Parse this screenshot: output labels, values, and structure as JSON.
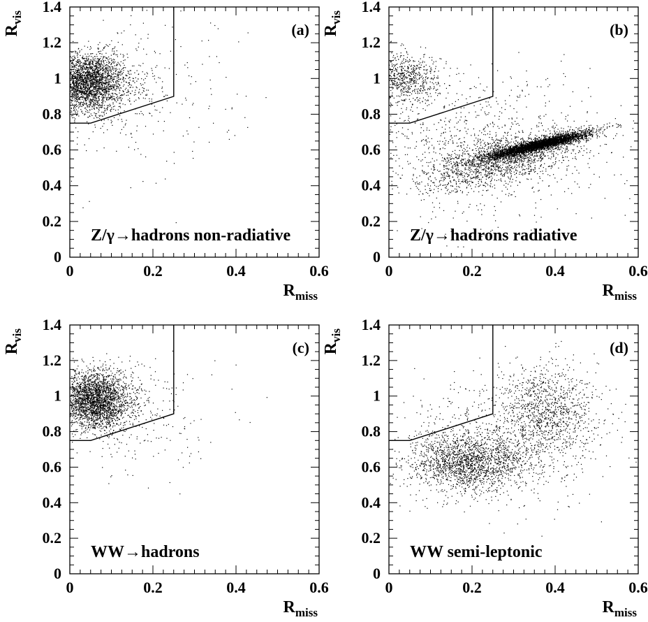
{
  "chart_data": [
    {
      "type": "scatter",
      "panel_label": "(a)",
      "annotation": "Z/γ→hadrons non-radiative",
      "xlabel_main": "R",
      "xlabel_sub": "miss",
      "ylabel_main": "R",
      "ylabel_sub": "vis",
      "xlim": [
        0,
        0.6
      ],
      "ylim": [
        0,
        1.4
      ],
      "xticks": [
        "0",
        "0.2",
        "0.4",
        "0.6"
      ],
      "yticks": [
        "0",
        "0.2",
        "0.4",
        "0.6",
        "0.8",
        "1",
        "1.2",
        "1.4"
      ],
      "selection_cut": [
        [
          0,
          0.75
        ],
        [
          0.05,
          0.75
        ],
        [
          0.25,
          0.9
        ],
        [
          0.25,
          1.4
        ]
      ],
      "clusters": [
        {
          "cx": 0.04,
          "cy": 0.98,
          "sx": 0.045,
          "sy": 0.08,
          "n": 2600
        },
        {
          "cx": 0.1,
          "cy": 0.95,
          "sx": 0.08,
          "sy": 0.12,
          "n": 350
        },
        {
          "cx": 0.2,
          "cy": 0.85,
          "sx": 0.15,
          "sy": 0.25,
          "n": 140
        }
      ]
    },
    {
      "type": "scatter",
      "panel_label": "(b)",
      "annotation": "Z/γ→hadrons radiative",
      "xlabel_main": "R",
      "xlabel_sub": "miss",
      "ylabel_main": "R",
      "ylabel_sub": "vis",
      "xlim": [
        0,
        0.6
      ],
      "ylim": [
        0,
        1.4
      ],
      "xticks": [
        "0",
        "0.2",
        "0.4",
        "0.6"
      ],
      "yticks": [
        "0",
        "0.2",
        "0.4",
        "0.6",
        "0.8",
        "1",
        "1.2",
        "1.4"
      ],
      "selection_cut": [
        [
          0,
          0.75
        ],
        [
          0.05,
          0.75
        ],
        [
          0.25,
          0.9
        ],
        [
          0.25,
          1.4
        ]
      ],
      "clusters": [
        {
          "cx": 0.04,
          "cy": 1.0,
          "sx": 0.04,
          "sy": 0.07,
          "n": 700
        },
        {
          "cx": 0.36,
          "cy": 0.63,
          "sx": 0.06,
          "sy": 0.015,
          "rho": 0.75,
          "slope": 0.55,
          "n": 3600
        },
        {
          "cx": 0.28,
          "cy": 0.55,
          "sx": 0.1,
          "sy": 0.06,
          "slope": 0.55,
          "n": 1500
        },
        {
          "cx": 0.22,
          "cy": 0.62,
          "sx": 0.14,
          "sy": 0.2,
          "n": 900
        }
      ]
    },
    {
      "type": "scatter",
      "panel_label": "(c)",
      "annotation": "WW→hadrons",
      "xlabel_main": "R",
      "xlabel_sub": "miss",
      "ylabel_main": "R",
      "ylabel_sub": "vis",
      "xlim": [
        0,
        0.6
      ],
      "ylim": [
        0,
        1.4
      ],
      "xticks": [
        "0",
        "0.2",
        "0.4",
        "0.6"
      ],
      "yticks": [
        "0",
        "0.2",
        "0.4",
        "0.6",
        "0.8",
        "1",
        "1.2",
        "1.4"
      ],
      "selection_cut": [
        [
          0,
          0.75
        ],
        [
          0.05,
          0.75
        ],
        [
          0.25,
          0.9
        ],
        [
          0.25,
          1.4
        ]
      ],
      "clusters": [
        {
          "cx": 0.06,
          "cy": 0.98,
          "sx": 0.04,
          "sy": 0.08,
          "n": 2500
        },
        {
          "cx": 0.12,
          "cy": 0.92,
          "sx": 0.07,
          "sy": 0.12,
          "n": 300
        },
        {
          "cx": 0.2,
          "cy": 0.85,
          "sx": 0.12,
          "sy": 0.2,
          "n": 100
        }
      ]
    },
    {
      "type": "scatter",
      "panel_label": "(d)",
      "annotation": "WW semi-leptonic",
      "xlabel_main": "R",
      "xlabel_sub": "miss",
      "ylabel_main": "R",
      "ylabel_sub": "vis",
      "xlim": [
        0,
        0.6
      ],
      "ylim": [
        0,
        1.4
      ],
      "xticks": [
        "0",
        "0.2",
        "0.4",
        "0.6"
      ],
      "yticks": [
        "0",
        "0.2",
        "0.4",
        "0.6",
        "0.8",
        "1",
        "1.2",
        "1.4"
      ],
      "selection_cut": [
        [
          0,
          0.75
        ],
        [
          0.05,
          0.75
        ],
        [
          0.25,
          0.9
        ],
        [
          0.25,
          1.4
        ]
      ],
      "clusters": [
        {
          "cx": 0.19,
          "cy": 0.63,
          "sx": 0.07,
          "sy": 0.08,
          "n": 1700
        },
        {
          "cx": 0.38,
          "cy": 0.92,
          "sx": 0.06,
          "sy": 0.13,
          "n": 1000
        },
        {
          "cx": 0.27,
          "cy": 0.75,
          "sx": 0.13,
          "sy": 0.18,
          "n": 700
        }
      ]
    }
  ]
}
